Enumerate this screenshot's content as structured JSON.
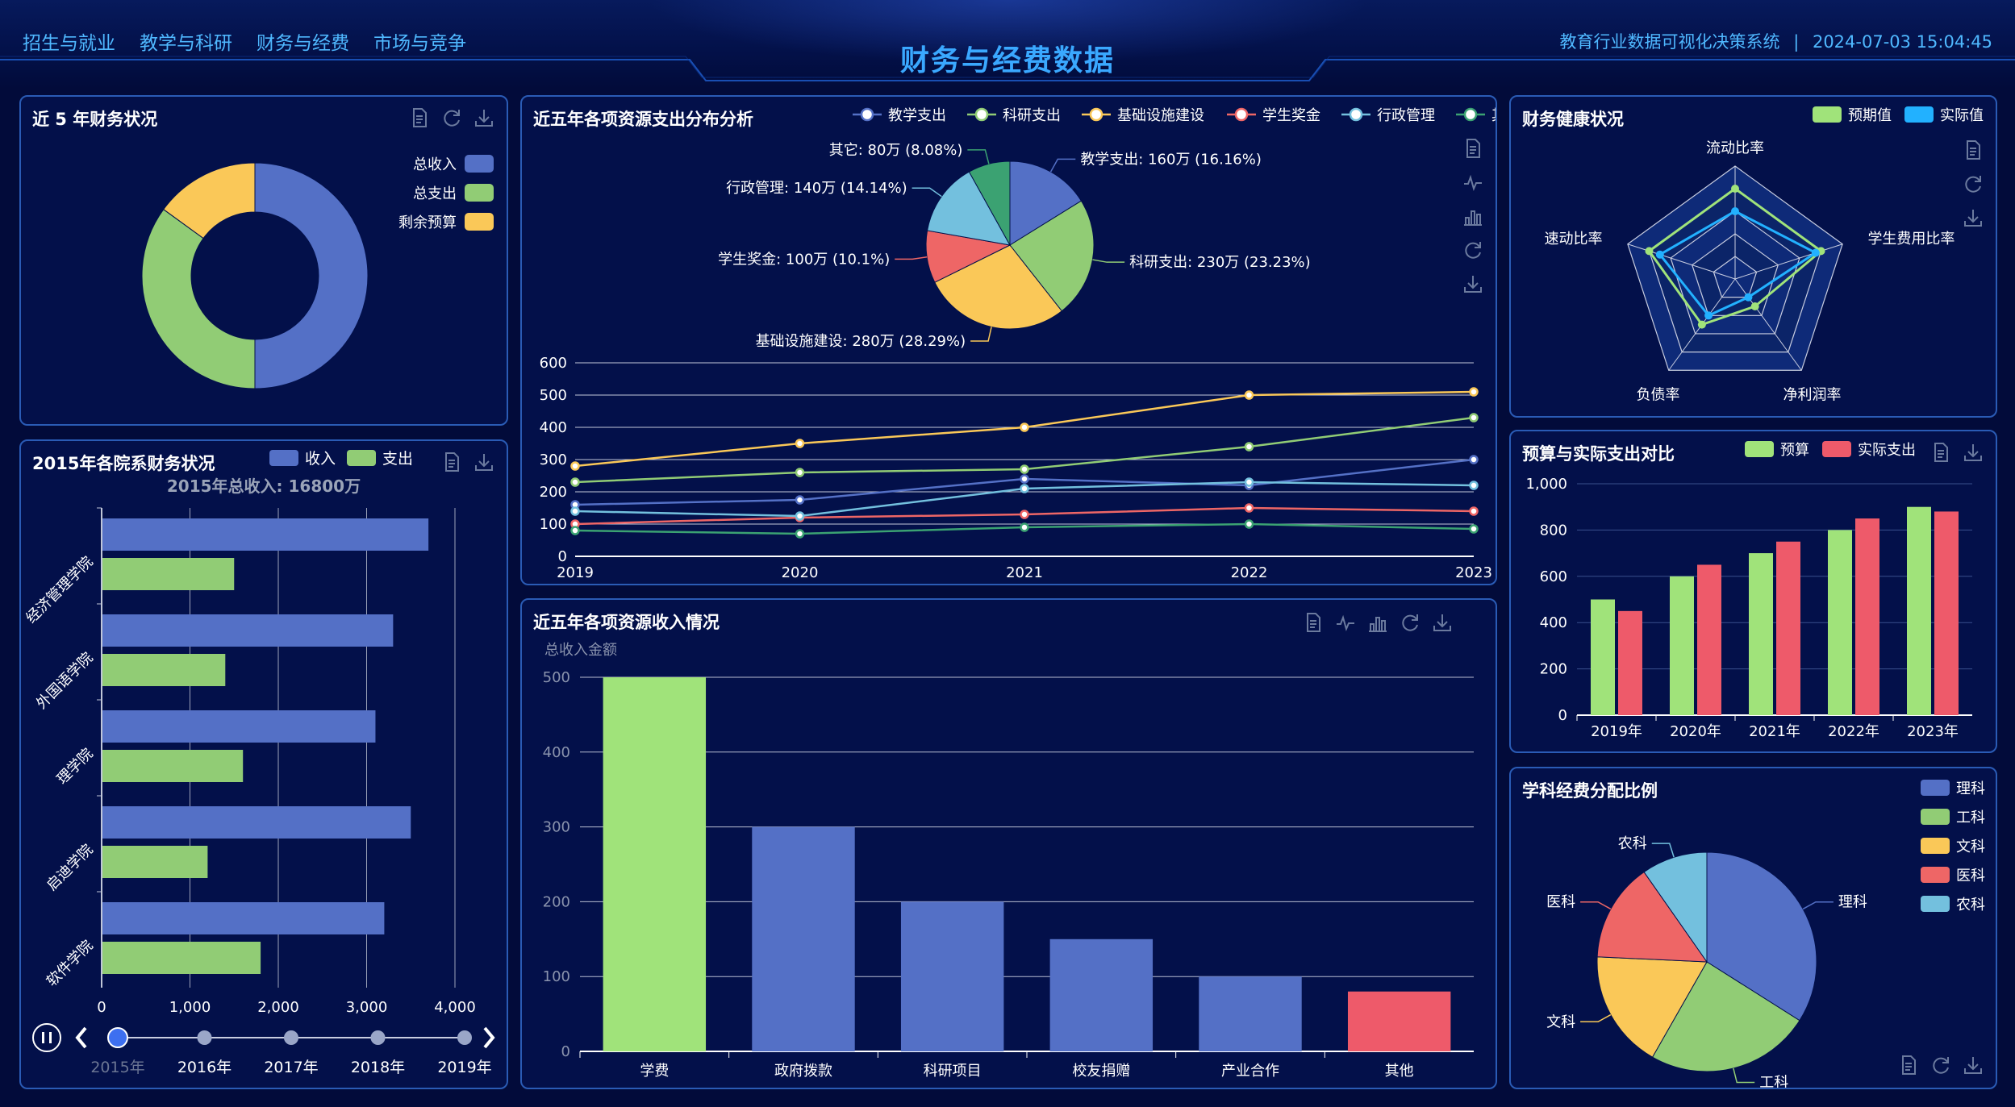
{
  "header": {
    "nav": [
      "招生与就业",
      "教学与科研",
      "财务与经费",
      "市场与竞争"
    ],
    "title": "财务与经费数据",
    "system": "教育行业数据可视化决策系统",
    "separator": "|",
    "datetime": "2024-07-03 15:04:45"
  },
  "icons": [
    "document-icon",
    "line-chart-icon",
    "bar-chart-icon",
    "refresh-icon",
    "download-icon",
    "pause-icon",
    "chevron-left-icon",
    "chevron-right-icon"
  ],
  "colors": {
    "blue": "#5470c6",
    "green": "#91cc75",
    "yellow": "#fac858",
    "red": "#ee6666",
    "sky": "#73c0de",
    "teal": "#3ba272",
    "cyan": "#22b1ff",
    "lightgreen": "#a0e37a",
    "title_blue": "#3aa8ff"
  },
  "panels": {
    "p1": {
      "title": "近 5 年财务状况"
    },
    "p2": {
      "title": "2015年各院系财务状况",
      "timeline": [
        "2015年",
        "2016年",
        "2017年",
        "2018年",
        "2019年"
      ],
      "timeline_current": "2015年"
    },
    "p3": {
      "title": "近五年各项资源支出分布分析"
    },
    "p4": {
      "title": "近五年各项资源收入情况"
    },
    "p5": {
      "title": "财务健康状况"
    },
    "p6": {
      "title": "预算与实际支出对比"
    },
    "p7": {
      "title": "学科经费分配比例"
    }
  },
  "chart_data": [
    {
      "id": "finance5y",
      "type": "pie",
      "donut": true,
      "slices": [
        {
          "name": "总收入",
          "value": 50,
          "color": "#5470c6"
        },
        {
          "name": "总支出",
          "value": 35,
          "color": "#91cc75"
        },
        {
          "name": "剩余预算",
          "value": 15,
          "color": "#fac858"
        }
      ],
      "legend": "top-right"
    },
    {
      "id": "dept2015",
      "type": "bar",
      "orientation": "horizontal",
      "title": "2015年总收入: 16800万",
      "categories": [
        "经济管理学院",
        "外国语学院",
        "理学院",
        "启迪学院",
        "软件学院"
      ],
      "series": [
        {
          "name": "收入",
          "values": [
            3700,
            3300,
            3100,
            3500,
            3200
          ],
          "color": "#5470c6"
        },
        {
          "name": "支出",
          "values": [
            1500,
            1400,
            1600,
            1200,
            1800
          ],
          "color": "#91cc75"
        }
      ],
      "xticks": [
        "0",
        "1,000",
        "2,000",
        "3,000",
        "4,000"
      ],
      "xlim": [
        0,
        4000
      ],
      "legend": "top-right"
    },
    {
      "id": "expensePie",
      "type": "pie",
      "slices": [
        {
          "name": "教学支出",
          "value": 160,
          "label": "教学支出: 160万 (16.16%)",
          "color": "#5470c6"
        },
        {
          "name": "科研支出",
          "value": 230,
          "label": "科研支出: 230万 (23.23%)",
          "color": "#91cc75"
        },
        {
          "name": "基础设施建设",
          "value": 280,
          "label": "基础设施建设: 280万 (28.29%)",
          "color": "#fac858"
        },
        {
          "name": "学生奖金",
          "value": 100,
          "label": "学生奖金: 100万 (10.1%)",
          "color": "#ee6666"
        },
        {
          "name": "行政管理",
          "value": 140,
          "label": "行政管理: 140万 (14.14%)",
          "color": "#73c0de"
        },
        {
          "name": "其它",
          "value": 80,
          "label": "其它: 80万 (8.08%)",
          "color": "#3ba272"
        }
      ],
      "legend": "top"
    },
    {
      "id": "expenseLine",
      "type": "line",
      "x": [
        "2019",
        "2020",
        "2021",
        "2022",
        "2023"
      ],
      "ylim": [
        0,
        600
      ],
      "yticks": [
        "0",
        "100",
        "200",
        "300",
        "400",
        "500",
        "600"
      ],
      "series": [
        {
          "name": "教学支出",
          "values": [
            160,
            175,
            240,
            220,
            300
          ],
          "color": "#5470c6"
        },
        {
          "name": "科研支出",
          "values": [
            230,
            260,
            270,
            340,
            430
          ],
          "color": "#91cc75"
        },
        {
          "name": "基础设施建设",
          "values": [
            280,
            350,
            400,
            500,
            510
          ],
          "color": "#fac858"
        },
        {
          "name": "学生奖金",
          "values": [
            100,
            120,
            130,
            150,
            140
          ],
          "color": "#ee6666"
        },
        {
          "name": "行政管理",
          "values": [
            140,
            125,
            210,
            230,
            220
          ],
          "color": "#73c0de"
        },
        {
          "name": "其它",
          "values": [
            80,
            70,
            90,
            100,
            85
          ],
          "color": "#3ba272"
        }
      ]
    },
    {
      "id": "incomeBar",
      "type": "bar",
      "ylabel": "总收入金额",
      "categories": [
        "学费",
        "政府拨款",
        "科研项目",
        "校友捐赠",
        "产业合作",
        "其他"
      ],
      "values": [
        500,
        300,
        200,
        150,
        100,
        80
      ],
      "colors": [
        "#a0e37a",
        "#5470c6",
        "#5470c6",
        "#5470c6",
        "#5470c6",
        "#ee5a6a"
      ],
      "ylim": [
        0,
        500
      ],
      "yticks": [
        "0",
        "100",
        "200",
        "300",
        "400",
        "500"
      ]
    },
    {
      "id": "healthRadar",
      "type": "radar",
      "indicators": [
        "流动比率",
        "学生费用比率",
        "净利润率",
        "负债率",
        "速动比率"
      ],
      "series": [
        {
          "name": "预期值",
          "values": [
            0.8,
            0.8,
            0.3,
            0.5,
            0.8
          ],
          "color": "#a0e37a"
        },
        {
          "name": "实际值",
          "values": [
            0.6,
            0.75,
            0.2,
            0.4,
            0.7
          ],
          "color": "#22b1ff"
        }
      ],
      "legend": "top-right"
    },
    {
      "id": "budgetBar",
      "type": "bar",
      "categories": [
        "2019年",
        "2020年",
        "2021年",
        "2022年",
        "2023年"
      ],
      "series": [
        {
          "name": "预算",
          "values": [
            500,
            600,
            700,
            800,
            900
          ],
          "color": "#a0e37a"
        },
        {
          "name": "实际支出",
          "values": [
            450,
            650,
            750,
            850,
            880
          ],
          "color": "#ee5a6a"
        }
      ],
      "ylim": [
        0,
        1000
      ],
      "yticks": [
        "0",
        "200",
        "400",
        "600",
        "800",
        "1,000"
      ],
      "legend": "top-right"
    },
    {
      "id": "subjectPie",
      "type": "pie",
      "slices": [
        {
          "name": "理科",
          "value": 35,
          "color": "#5470c6"
        },
        {
          "name": "工科",
          "value": 25,
          "color": "#91cc75"
        },
        {
          "name": "文科",
          "value": 18,
          "color": "#fac858"
        },
        {
          "name": "医科",
          "value": 15,
          "color": "#ee6666"
        },
        {
          "name": "农科",
          "value": 10,
          "color": "#73c0de"
        }
      ],
      "legend": "right"
    }
  ]
}
